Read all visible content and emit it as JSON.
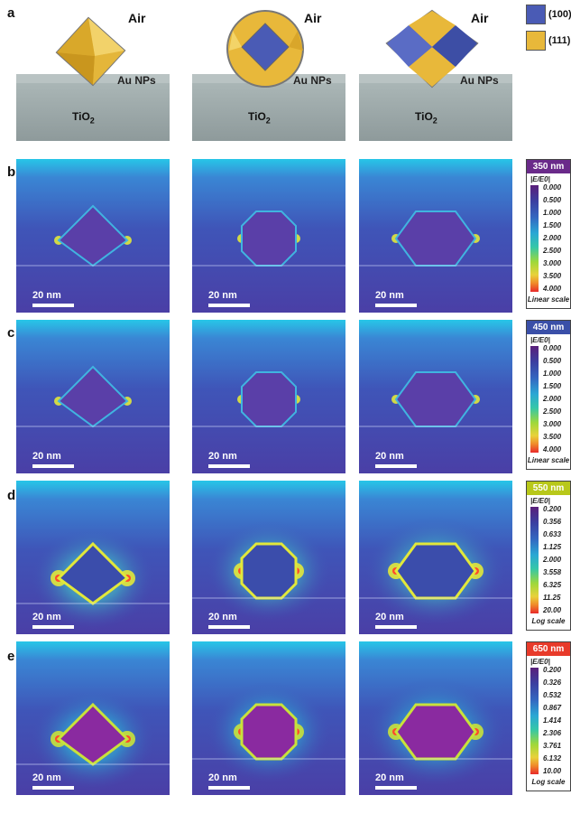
{
  "panel_labels": [
    "a",
    "b",
    "c",
    "d",
    "e"
  ],
  "scene": {
    "air_label": "Air",
    "np_label": "Au NPs",
    "substrate_label": "TiO",
    "substrate_sub": "2"
  },
  "legend": [
    {
      "label": "(100)",
      "color": "#4a5bb5"
    },
    {
      "label": "(111)",
      "color": "#e8b83a"
    }
  ],
  "scale_bar_text": "20 nm",
  "colorbars": [
    {
      "wavelength": "350 nm",
      "header_color": "#6a2a8a",
      "unit": "|E/E0|",
      "ticks": [
        "0.000",
        "0.500",
        "1.000",
        "1.500",
        "2.000",
        "2.500",
        "3.000",
        "3.500",
        "4.000"
      ],
      "scale": "Linear scale"
    },
    {
      "wavelength": "450 nm",
      "header_color": "#3a4fa8",
      "unit": "|E/E0|",
      "ticks": [
        "0.000",
        "0.500",
        "1.000",
        "1.500",
        "2.000",
        "2.500",
        "3.000",
        "3.500",
        "4.000"
      ],
      "scale": "Linear scale"
    },
    {
      "wavelength": "550 nm",
      "header_color": "#b8c81a",
      "unit": "|E/E0|",
      "ticks": [
        "0.200",
        "0.356",
        "0.633",
        "1.125",
        "2.000",
        "3.558",
        "6.325",
        "11.25",
        "20.00"
      ],
      "scale": "Log scale"
    },
    {
      "wavelength": "650 nm",
      "header_color": "#e83a2a",
      "unit": "|E/E0|",
      "ticks": [
        "0.200",
        "0.326",
        "0.532",
        "0.867",
        "1.414",
        "2.306",
        "3.761",
        "6.132",
        "10.00"
      ],
      "scale": "Log scale"
    }
  ]
}
